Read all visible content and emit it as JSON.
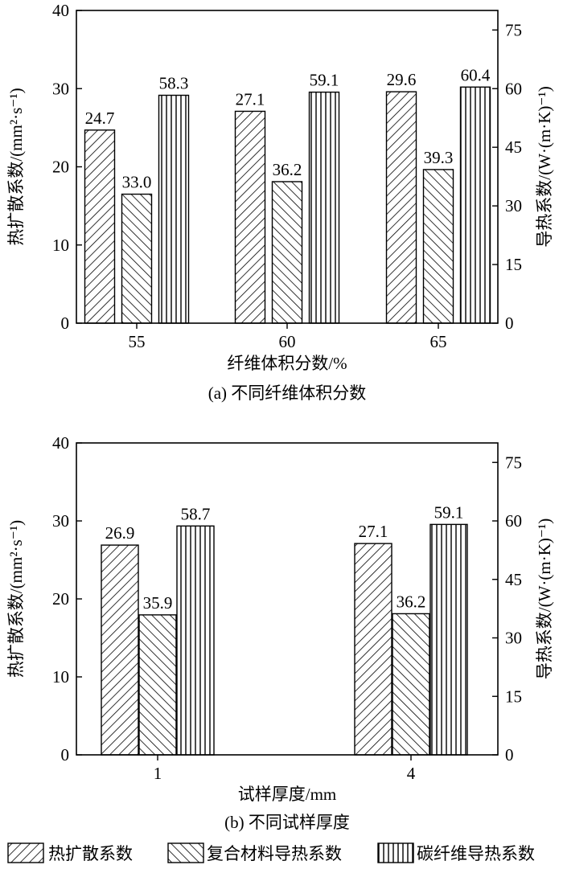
{
  "legend": [
    "热扩散系数",
    "复合材料导热系数",
    "碳纤维导热系数"
  ],
  "chart_data": [
    {
      "type": "bar",
      "caption": "(a) 不同纤维体积分数",
      "xlabel": "纤维体积分数/%",
      "ylabel_left": "热扩散系数/(mm²·s⁻¹)",
      "ylabel_right": "导热系数/(W·(m·K)⁻¹)",
      "ylim_left": [
        0,
        40
      ],
      "ylim_right": [
        0,
        80
      ],
      "yticks_left": [
        "0",
        "10",
        "20",
        "30",
        "40"
      ],
      "yticks_right": [
        "0",
        "15",
        "30",
        "45",
        "60",
        "75"
      ],
      "categories": [
        "55",
        "60",
        "65"
      ],
      "series": [
        {
          "name": "热扩散系数",
          "axis": "left",
          "pattern": "diag-forward",
          "values": [
            24.7,
            27.1,
            29.6
          ],
          "labels": [
            "24.7",
            "27.1",
            "29.6"
          ]
        },
        {
          "name": "复合材料导热系数",
          "axis": "right",
          "pattern": "diag-back",
          "values": [
            33.0,
            36.2,
            39.3
          ],
          "labels": [
            "33.0",
            "36.2",
            "39.3"
          ]
        },
        {
          "name": "碳纤维导热系数",
          "axis": "right",
          "pattern": "vertical",
          "values": [
            58.3,
            59.1,
            60.4
          ],
          "labels": [
            "58.3",
            "59.1",
            "60.4"
          ]
        }
      ]
    },
    {
      "type": "bar",
      "caption": "(b) 不同试样厚度",
      "xlabel": "试样厚度/mm",
      "ylabel_left": "热扩散系数/(mm²·s⁻¹)",
      "ylabel_right": "导热系数/(W·(m·K)⁻¹)",
      "ylim_left": [
        0,
        40
      ],
      "ylim_right": [
        0,
        80
      ],
      "yticks_left": [
        "0",
        "10",
        "20",
        "30",
        "40"
      ],
      "yticks_right": [
        "0",
        "15",
        "30",
        "45",
        "60",
        "75"
      ],
      "categories": [
        "1",
        "4"
      ],
      "series": [
        {
          "name": "热扩散系数",
          "axis": "left",
          "pattern": "diag-forward",
          "values": [
            26.9,
            27.1
          ],
          "labels": [
            "26.9",
            "27.1"
          ]
        },
        {
          "name": "复合材料导热系数",
          "axis": "right",
          "pattern": "diag-back",
          "values": [
            35.9,
            36.2
          ],
          "labels": [
            "35.9",
            "36.2"
          ]
        },
        {
          "name": "碳纤维导热系数",
          "axis": "right",
          "pattern": "vertical",
          "values": [
            58.7,
            59.1
          ],
          "labels": [
            "58.7",
            "59.1"
          ]
        }
      ]
    }
  ]
}
